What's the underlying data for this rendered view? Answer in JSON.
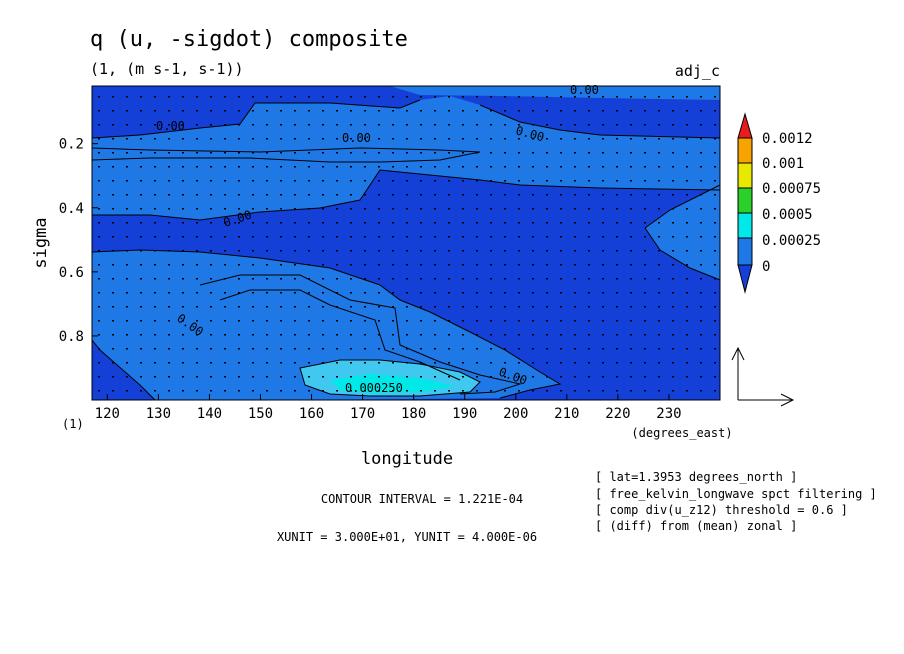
{
  "chart_data": {
    "type": "heatmap",
    "title": "q (u, -sigdot) composite",
    "subtitle": "(1, (m s-1, s-1))",
    "tag": "adj_c",
    "xlabel": "longitude",
    "xunits": "(degrees_east)",
    "ylabel": "sigma",
    "yunits": "(1)",
    "xlim": [
      117,
      240
    ],
    "ylim": [
      1.0,
      0.02
    ],
    "x_ticks": [
      120,
      130,
      140,
      150,
      160,
      170,
      180,
      190,
      200,
      210,
      220,
      230
    ],
    "y_ticks": [
      0.2,
      0.4,
      0.6,
      0.8
    ],
    "colorbar": {
      "levels": [
        "0.0012",
        "0.001",
        "0.00075",
        "0.0005",
        "0.00025",
        "0"
      ],
      "colors": [
        "#e81c1c",
        "#f7a400",
        "#e8e800",
        "#2bd12b",
        "#00e8e8",
        "#1e78e6",
        "#1440d8"
      ]
    },
    "contour_labels": [
      "0.00",
      "0.00",
      "0.00",
      "0.00",
      "0.00",
      "0.00",
      "0.00",
      "0.000250"
    ],
    "contour_interval": "CONTOUR INTERVAL = 1.221E-04",
    "vector_units": "XUNIT = 3.000E+01, YUNIT = 4.000E-06",
    "notes": [
      "[ lat=1.3953 degrees_north ]",
      "[ free_kelvin_longwave spct filtering ]",
      "[ comp div(u_z12) threshold = 0.6 ]",
      "[ (diff) from (mean) zonal ]"
    ]
  }
}
